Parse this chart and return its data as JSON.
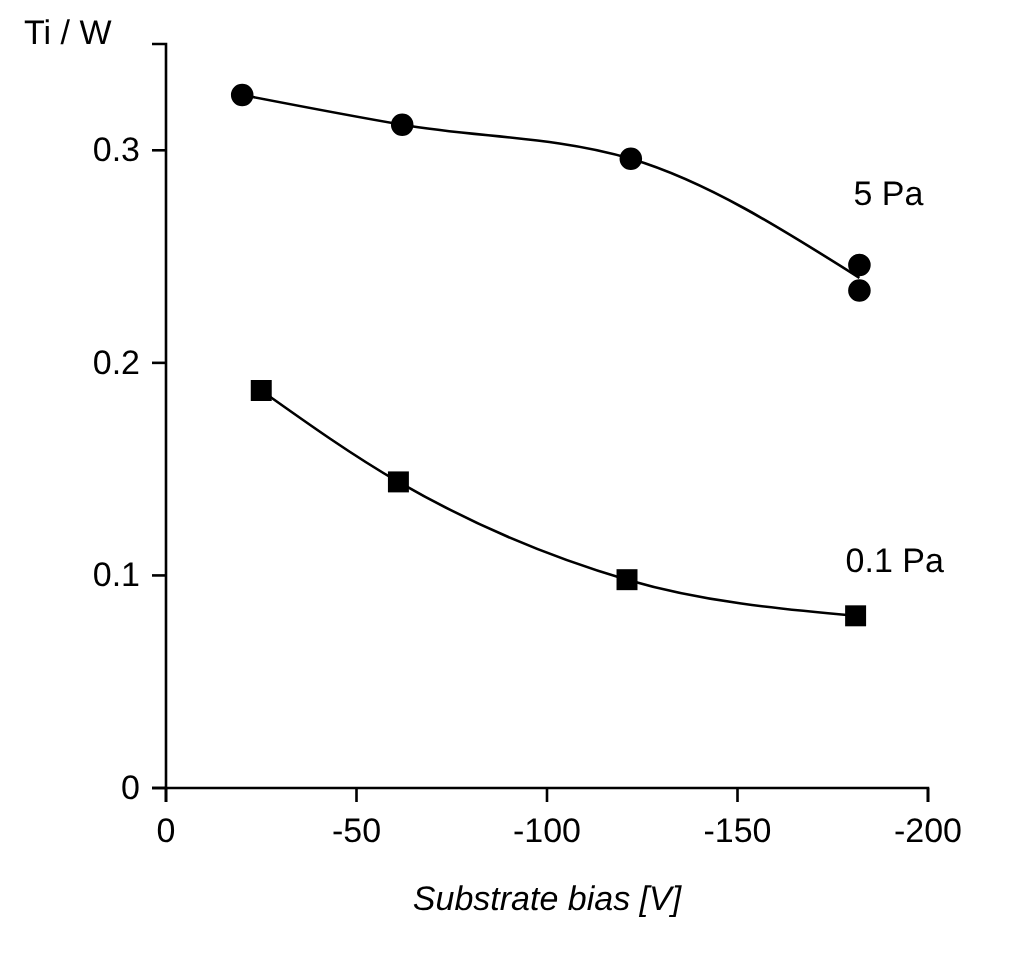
{
  "chart_data": {
    "type": "scatter",
    "xlabel": "Substrate bias [V]",
    "ylabel": "Ti / W",
    "xlim": [
      0,
      -200
    ],
    "xticks": [
      0,
      -50,
      -100,
      -150,
      -200
    ],
    "ylim": [
      0,
      0.35
    ],
    "yticks": [
      0,
      0.1,
      0.2,
      0.3
    ],
    "grid": false,
    "legend": false,
    "series": [
      {
        "type": "scatter",
        "name": "5 Pa",
        "color": "#000000",
        "marker": "circle",
        "x": [
          -20,
          -62,
          -122,
          -182,
          -182
        ],
        "values": [
          0.326,
          0.312,
          0.296,
          0.246,
          0.234
        ]
      },
      {
        "type": "line",
        "color": "#000000",
        "marker": "none",
        "x": [
          -20,
          -62,
          -122,
          -182
        ],
        "values": [
          0.326,
          0.312,
          0.296,
          0.24
        ]
      },
      {
        "type": "line",
        "name": "0.1 Pa",
        "color": "#000000",
        "marker": "square",
        "x": [
          -25,
          -61,
          -121,
          -181
        ],
        "values": [
          0.187,
          0.144,
          0.098,
          0.081
        ]
      }
    ]
  }
}
